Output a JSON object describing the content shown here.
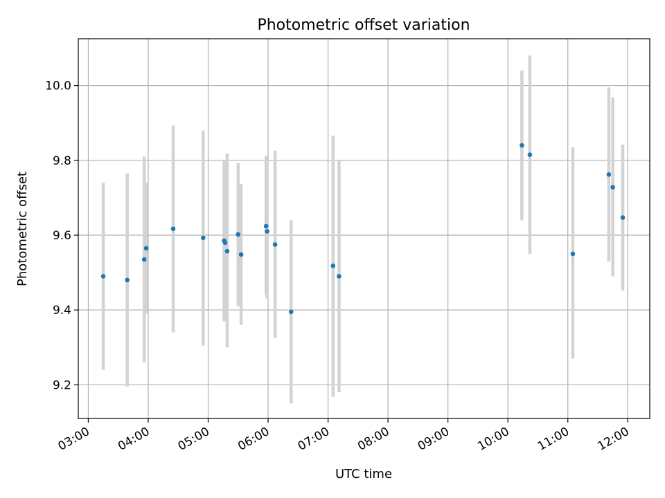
{
  "chart_data": {
    "type": "scatter",
    "title": "Photometric offset variation",
    "xlabel": "UTC time",
    "ylabel": "Photometric offset",
    "xlim": [
      "02:50",
      "12:22"
    ],
    "ylim": [
      9.11,
      10.125
    ],
    "grid": true,
    "xticks": [
      "03:00",
      "04:00",
      "05:00",
      "06:00",
      "07:00",
      "08:00",
      "09:00",
      "10:00",
      "11:00",
      "12:00"
    ],
    "yticks": [
      "9.2",
      "9.4",
      "9.6",
      "9.8",
      "10.0"
    ],
    "colors": {
      "point": "#1f77b4",
      "errorbar": "#d3d3d3",
      "grid": "#b0b0b0",
      "axes": "#000000"
    },
    "series": [
      {
        "points": [
          {
            "x": "03:15",
            "y": 9.49,
            "ylo": 9.24,
            "yhi": 9.74
          },
          {
            "x": "03:39",
            "y": 9.48,
            "ylo": 9.195,
            "yhi": 9.765
          },
          {
            "x": "03:56",
            "y": 9.535,
            "ylo": 9.26,
            "yhi": 9.81
          },
          {
            "x": "03:58",
            "y": 9.565,
            "ylo": 9.39,
            "yhi": 9.74
          },
          {
            "x": "04:25",
            "y": 9.617,
            "ylo": 9.34,
            "yhi": 9.893
          },
          {
            "x": "04:55",
            "y": 9.593,
            "ylo": 9.305,
            "yhi": 9.88
          },
          {
            "x": "05:16",
            "y": 9.585,
            "ylo": 9.37,
            "yhi": 9.8
          },
          {
            "x": "05:17",
            "y": 9.58,
            "ylo": 9.37,
            "yhi": 9.79
          },
          {
            "x": "05:19",
            "y": 9.557,
            "ylo": 9.3,
            "yhi": 9.818
          },
          {
            "x": "05:30",
            "y": 9.602,
            "ylo": 9.41,
            "yhi": 9.793
          },
          {
            "x": "05:33",
            "y": 9.548,
            "ylo": 9.36,
            "yhi": 9.737
          },
          {
            "x": "05:58",
            "y": 9.624,
            "ylo": 9.44,
            "yhi": 9.812
          },
          {
            "x": "05:59",
            "y": 9.61,
            "ylo": 9.43,
            "yhi": 9.8
          },
          {
            "x": "06:07",
            "y": 9.575,
            "ylo": 9.325,
            "yhi": 9.826
          },
          {
            "x": "06:23",
            "y": 9.395,
            "ylo": 9.15,
            "yhi": 9.64
          },
          {
            "x": "07:05",
            "y": 9.518,
            "ylo": 9.168,
            "yhi": 9.866
          },
          {
            "x": "07:11",
            "y": 9.49,
            "ylo": 9.18,
            "yhi": 9.8
          },
          {
            "x": "10:14",
            "y": 9.84,
            "ylo": 9.64,
            "yhi": 10.04
          },
          {
            "x": "10:22",
            "y": 9.815,
            "ylo": 9.55,
            "yhi": 10.08
          },
          {
            "x": "11:05",
            "y": 9.55,
            "ylo": 9.27,
            "yhi": 9.835
          },
          {
            "x": "11:41",
            "y": 9.762,
            "ylo": 9.53,
            "yhi": 9.995
          },
          {
            "x": "11:45",
            "y": 9.728,
            "ylo": 9.49,
            "yhi": 9.968
          },
          {
            "x": "11:55",
            "y": 9.647,
            "ylo": 9.452,
            "yhi": 9.842
          }
        ]
      }
    ]
  }
}
